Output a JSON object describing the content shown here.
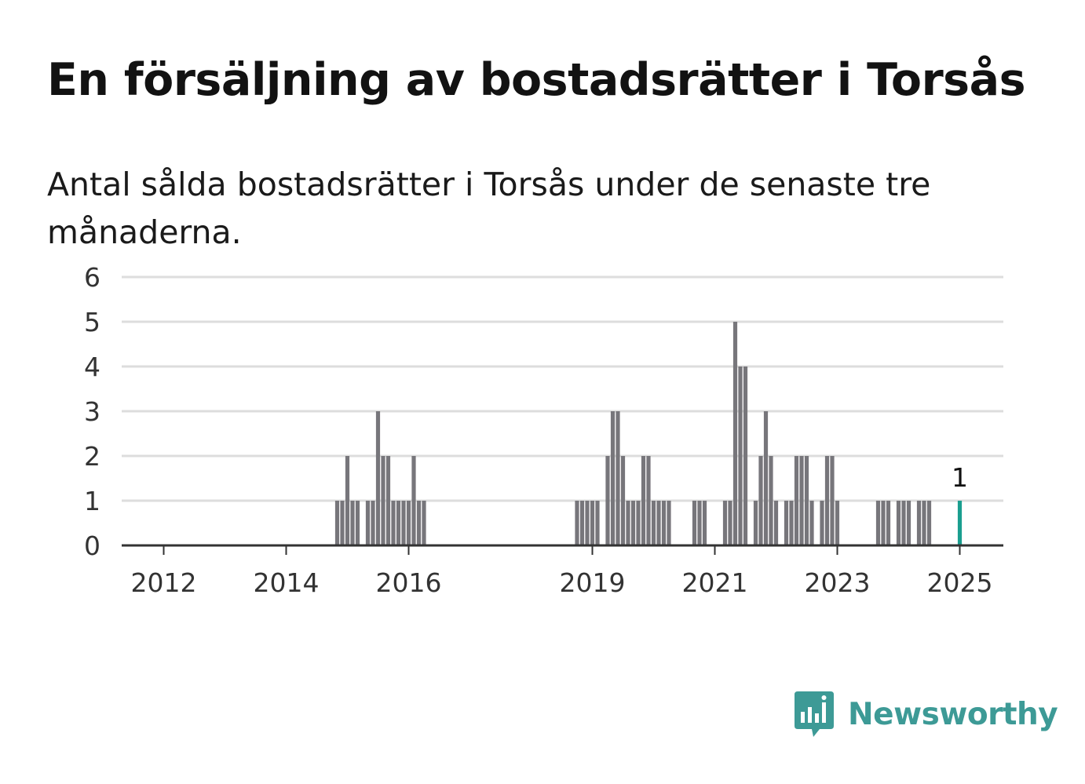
{
  "title": "En försäljning av bostadsrätter i Torsås",
  "subtitle": "Antal sålda bostadsrätter i Torsås under de senaste tre månaderna.",
  "brand": {
    "name": "Newsworthy",
    "icon": "newsworthy-logo-icon",
    "color": "#3d9a96"
  },
  "colors": {
    "bar": "#77767b",
    "highlight": "#1a9e8f",
    "grid": "#dddddd",
    "axis": "#333333"
  },
  "chart_data": {
    "type": "bar",
    "x_axis": "monthly, 2011-09 to 2025-02",
    "x_ticks": [
      "2012",
      "2014",
      "2016",
      "2019",
      "2021",
      "2023",
      "2025"
    ],
    "y_ticks": [
      "0",
      "1",
      "2",
      "3",
      "4",
      "5",
      "6"
    ],
    "ylim": [
      0,
      6
    ],
    "grid": true,
    "series": [
      {
        "values": [
          {
            "month": "2014-11",
            "value": 1
          },
          {
            "month": "2014-12",
            "value": 1
          },
          {
            "month": "2015-01",
            "value": 2
          },
          {
            "month": "2015-02",
            "value": 1
          },
          {
            "month": "2015-03",
            "value": 1
          },
          {
            "month": "2015-05",
            "value": 1
          },
          {
            "month": "2015-06",
            "value": 1
          },
          {
            "month": "2015-07",
            "value": 3
          },
          {
            "month": "2015-08",
            "value": 2
          },
          {
            "month": "2015-09",
            "value": 2
          },
          {
            "month": "2015-10",
            "value": 1
          },
          {
            "month": "2015-11",
            "value": 1
          },
          {
            "month": "2015-12",
            "value": 1
          },
          {
            "month": "2016-01",
            "value": 1
          },
          {
            "month": "2016-02",
            "value": 2
          },
          {
            "month": "2016-03",
            "value": 1
          },
          {
            "month": "2016-04",
            "value": 1
          },
          {
            "month": "2018-10",
            "value": 1
          },
          {
            "month": "2018-11",
            "value": 1
          },
          {
            "month": "2018-12",
            "value": 1
          },
          {
            "month": "2019-01",
            "value": 1
          },
          {
            "month": "2019-02",
            "value": 1
          },
          {
            "month": "2019-04",
            "value": 2
          },
          {
            "month": "2019-05",
            "value": 3
          },
          {
            "month": "2019-06",
            "value": 3
          },
          {
            "month": "2019-07",
            "value": 2
          },
          {
            "month": "2019-08",
            "value": 1
          },
          {
            "month": "2019-09",
            "value": 1
          },
          {
            "month": "2019-10",
            "value": 1
          },
          {
            "month": "2019-11",
            "value": 2
          },
          {
            "month": "2019-12",
            "value": 2
          },
          {
            "month": "2020-01",
            "value": 1
          },
          {
            "month": "2020-02",
            "value": 1
          },
          {
            "month": "2020-03",
            "value": 1
          },
          {
            "month": "2020-04",
            "value": 1
          },
          {
            "month": "2020-09",
            "value": 1
          },
          {
            "month": "2020-10",
            "value": 1
          },
          {
            "month": "2020-11",
            "value": 1
          },
          {
            "month": "2021-03",
            "value": 1
          },
          {
            "month": "2021-04",
            "value": 1
          },
          {
            "month": "2021-05",
            "value": 5
          },
          {
            "month": "2021-06",
            "value": 4
          },
          {
            "month": "2021-07",
            "value": 4
          },
          {
            "month": "2021-09",
            "value": 1
          },
          {
            "month": "2021-10",
            "value": 2
          },
          {
            "month": "2021-11",
            "value": 3
          },
          {
            "month": "2021-12",
            "value": 2
          },
          {
            "month": "2022-01",
            "value": 1
          },
          {
            "month": "2022-03",
            "value": 1
          },
          {
            "month": "2022-04",
            "value": 1
          },
          {
            "month": "2022-05",
            "value": 2
          },
          {
            "month": "2022-06",
            "value": 2
          },
          {
            "month": "2022-07",
            "value": 2
          },
          {
            "month": "2022-08",
            "value": 1
          },
          {
            "month": "2022-10",
            "value": 1
          },
          {
            "month": "2022-11",
            "value": 2
          },
          {
            "month": "2022-12",
            "value": 2
          },
          {
            "month": "2023-01",
            "value": 1
          },
          {
            "month": "2023-09",
            "value": 1
          },
          {
            "month": "2023-10",
            "value": 1
          },
          {
            "month": "2023-11",
            "value": 1
          },
          {
            "month": "2024-01",
            "value": 1
          },
          {
            "month": "2024-02",
            "value": 1
          },
          {
            "month": "2024-03",
            "value": 1
          },
          {
            "month": "2024-05",
            "value": 1
          },
          {
            "month": "2024-06",
            "value": 1
          },
          {
            "month": "2024-07",
            "value": 1
          }
        ]
      }
    ],
    "highlight": {
      "month": "2025-01",
      "value": 1,
      "label": "1"
    }
  }
}
